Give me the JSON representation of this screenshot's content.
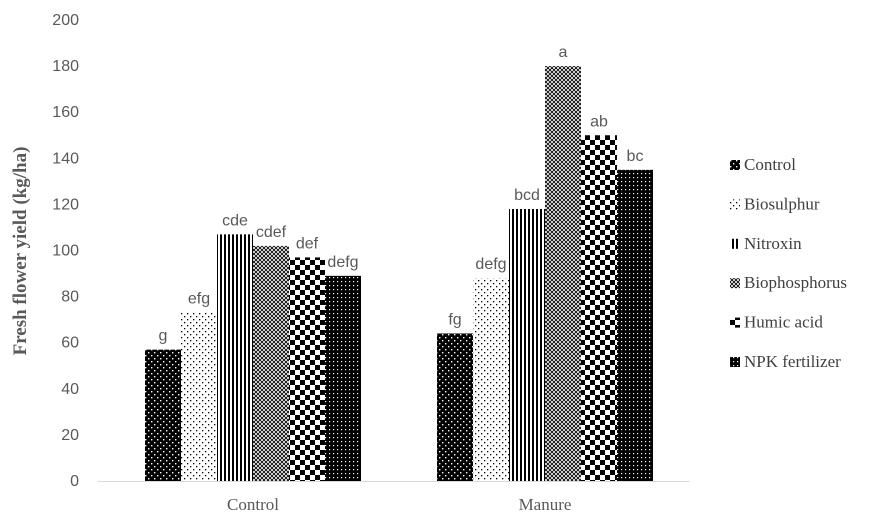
{
  "chart_data": {
    "type": "bar",
    "title": "",
    "xlabel": "",
    "ylabel": "Fresh flower yield (kg/ha)",
    "ylim": [
      0,
      200
    ],
    "yticks": [
      0,
      20,
      40,
      60,
      80,
      100,
      120,
      140,
      160,
      180,
      200
    ],
    "grid": false,
    "legend_position": "right",
    "categories": [
      "Control",
      "Manure"
    ],
    "series": [
      {
        "name": "Control",
        "pattern": "dots-dense",
        "values": [
          57,
          64
        ],
        "labels": [
          "g",
          "fg"
        ]
      },
      {
        "name": "Biosulphur",
        "pattern": "dots-sparse",
        "values": [
          73,
          88
        ],
        "labels": [
          "efg",
          "defg"
        ]
      },
      {
        "name": "Nitroxin",
        "pattern": "vertical-lines",
        "values": [
          107,
          118
        ],
        "labels": [
          "cde",
          "bcd"
        ]
      },
      {
        "name": "Biophosphorus",
        "pattern": "crosshatch",
        "values": [
          102,
          180
        ],
        "labels": [
          "cdef",
          "a"
        ]
      },
      {
        "name": "Humic acid",
        "pattern": "checker",
        "values": [
          97,
          150
        ],
        "labels": [
          "def",
          "ab"
        ]
      },
      {
        "name": "NPK fertilizer",
        "pattern": "grid-dark",
        "values": [
          89,
          135
        ],
        "labels": [
          "defg",
          "bc"
        ]
      }
    ]
  }
}
